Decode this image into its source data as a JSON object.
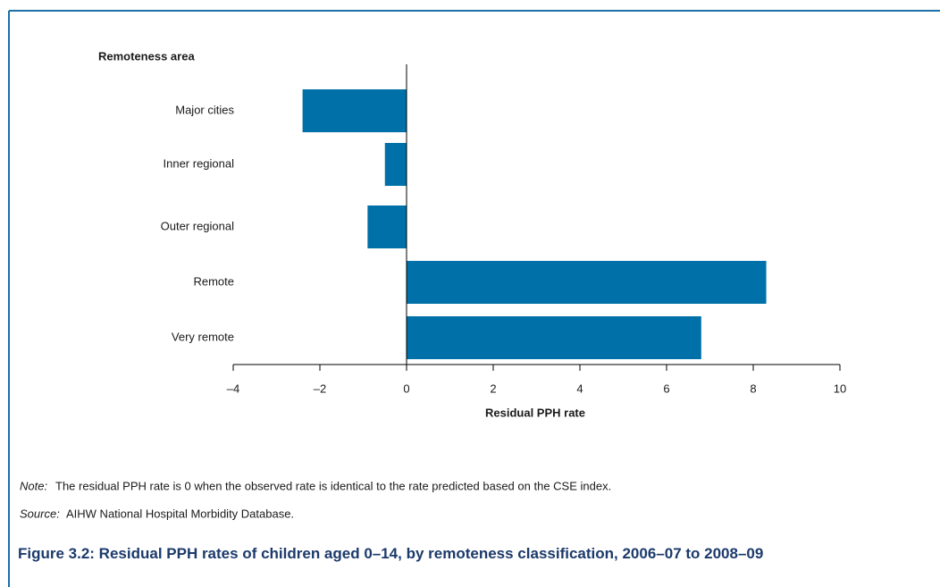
{
  "chart_data": {
    "type": "barh",
    "title": "Figure 3.2: Residual PPH rates of children aged 0–14, by remoteness classification, 2006–07 to 2008–09",
    "y_axis_label": "Remoteness area",
    "x_axis_label": "Residual PPH rate",
    "categories": [
      "Major cities",
      "Inner regional",
      "Outer regional",
      "Remote",
      "Very remote"
    ],
    "values": [
      -2.4,
      -0.5,
      -0.9,
      8.3,
      6.8
    ],
    "color": "#0070a8",
    "xlim": [
      -4,
      10
    ],
    "xticks": [
      {
        "value": -4,
        "label": "–4"
      },
      {
        "value": -2,
        "label": "–2"
      },
      0,
      2,
      4,
      6,
      8,
      10
    ],
    "note_label": "Note:",
    "note": "The residual PPH rate is 0 when the observed rate is identical to the rate predicted based on the CSE index.",
    "source_label": "Source:",
    "source": "AIHW National Hospital Morbidity Database."
  }
}
